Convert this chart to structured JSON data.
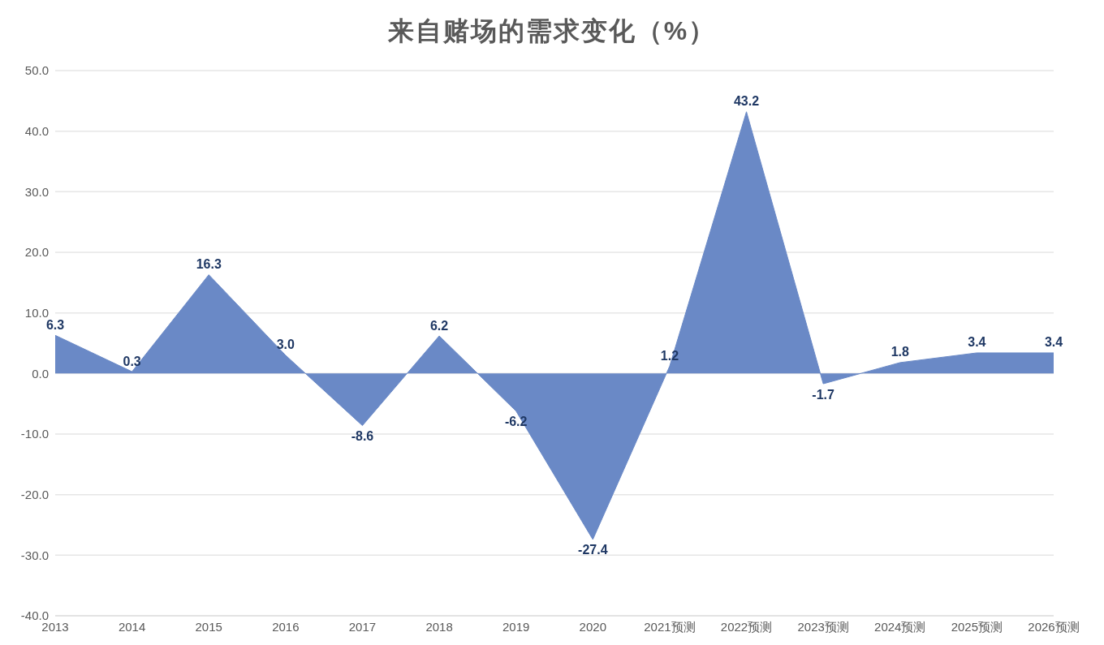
{
  "chart_data": {
    "type": "area",
    "title": "来自赌场的需求变化（%）",
    "categories": [
      "2013",
      "2014",
      "2015",
      "2016",
      "2017",
      "2018",
      "2019",
      "2020",
      "2021预测",
      "2022预测",
      "2023预测",
      "2024预测",
      "2025预测",
      "2026预测"
    ],
    "values": [
      6.3,
      0.3,
      16.3,
      3.0,
      -8.6,
      6.2,
      -6.2,
      -27.4,
      1.2,
      43.2,
      -1.7,
      1.8,
      3.4,
      3.4
    ],
    "value_labels": [
      "6.3",
      "0.3",
      "16.3",
      "3.0",
      "-8.6",
      "6.2",
      "-6.2",
      "-27.4",
      "1.2",
      "43.2",
      "-1.7",
      "1.8",
      "3.4",
      "3.4"
    ],
    "color": "#6a89c6",
    "ylim": [
      -40,
      50
    ],
    "yticks": [
      {
        "value": -40,
        "label": "-40.0"
      },
      {
        "value": -30,
        "label": "-30.0"
      },
      {
        "value": -20,
        "label": "-20.0"
      },
      {
        "value": -10,
        "label": "-10.0"
      },
      {
        "value": 0,
        "label": "0.0"
      },
      {
        "value": 10,
        "label": "10.0"
      },
      {
        "value": 20,
        "label": "20.0"
      },
      {
        "value": 30,
        "label": "30.0"
      },
      {
        "value": 40,
        "label": "40.0"
      },
      {
        "value": 50,
        "label": "50.0"
      }
    ],
    "grid": "y"
  }
}
